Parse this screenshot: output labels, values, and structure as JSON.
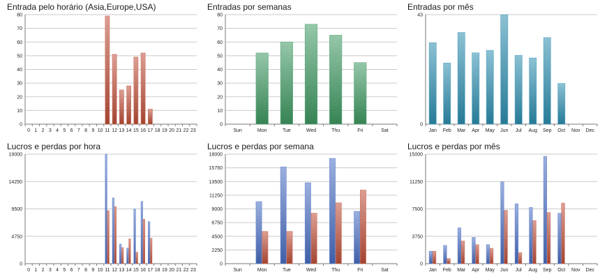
{
  "colors": {
    "red": "#c0503a",
    "green": "#3f9a63",
    "teal": "#2d8fb1",
    "blue": "#4a6fc4",
    "grid": "#c9c9c9",
    "axis": "#7a7a7a"
  },
  "chart_data": [
    {
      "type": "bar",
      "title": "Entrada pelo horário (Asia,Europe,USA)",
      "categories": [
        "0",
        "1",
        "2",
        "3",
        "4",
        "5",
        "6",
        "7",
        "8",
        "9",
        "10",
        "11",
        "12",
        "13",
        "14",
        "15",
        "16",
        "17",
        "18",
        "19",
        "20",
        "21",
        "22",
        "23"
      ],
      "series": [
        {
          "values": [
            0,
            0,
            0,
            0,
            0,
            0,
            0,
            0,
            0,
            0,
            0,
            79,
            51,
            25,
            28,
            49,
            52,
            11,
            0,
            0,
            0,
            0,
            0,
            0
          ]
        }
      ],
      "ylim": [
        0,
        80
      ],
      "yticks": [
        "0",
        "10",
        "20",
        "30",
        "40",
        "50",
        "60",
        "70",
        "80"
      ],
      "grid": true
    },
    {
      "type": "bar",
      "title": "Entradas por semanas",
      "categories": [
        "Sun",
        "Mon",
        "Tue",
        "Wed",
        "Thu",
        "Fri",
        "Sat"
      ],
      "series": [
        {
          "values": [
            0,
            52,
            60,
            73,
            65,
            45,
            0
          ]
        }
      ],
      "ylim": [
        0,
        80
      ],
      "yticks": [
        "0",
        "10",
        "20",
        "30",
        "40",
        "50",
        "60",
        "70",
        "80"
      ],
      "grid": true
    },
    {
      "type": "bar",
      "title": "Entradas por mês",
      "categories": [
        "Jan",
        "Feb",
        "Mar",
        "Apr",
        "May",
        "Jun",
        "Jul",
        "Aug",
        "Sep",
        "Oct",
        "Nov",
        "Dec"
      ],
      "series": [
        {
          "values": [
            32,
            24,
            36,
            28,
            29,
            43,
            27,
            26,
            34,
            16,
            0,
            0
          ]
        }
      ],
      "ylim": [
        0,
        43
      ],
      "yticks": [
        "0",
        "43"
      ],
      "grid": true
    },
    {
      "type": "bar",
      "title": "Lucros e perdas por hora",
      "categories": [
        "0",
        "1",
        "2",
        "3",
        "4",
        "5",
        "6",
        "7",
        "8",
        "9",
        "10",
        "11",
        "12",
        "13",
        "14",
        "15",
        "16",
        "17",
        "18",
        "19",
        "20",
        "21",
        "22",
        "23"
      ],
      "series": [
        {
          "values": [
            0,
            0,
            0,
            0,
            0,
            0,
            0,
            0,
            0,
            0,
            0,
            19000,
            11400,
            3400,
            2700,
            9500,
            10800,
            7300,
            0,
            0,
            0,
            0,
            0,
            0
          ]
        },
        {
          "values": [
            0,
            0,
            0,
            0,
            0,
            0,
            0,
            0,
            0,
            0,
            0,
            9200,
            9900,
            2800,
            4300,
            2000,
            7700,
            4400,
            0,
            0,
            0,
            0,
            0,
            0
          ]
        }
      ],
      "ylim": [
        0,
        19000
      ],
      "yticks": [
        "0",
        "4750",
        "9500",
        "14250",
        "19000"
      ],
      "grid": true
    },
    {
      "type": "bar",
      "title": "Lucros e perdas por semana",
      "categories": [
        "Sun",
        "Mon",
        "Tue",
        "Wed",
        "Thu",
        "Fri",
        "Sat"
      ],
      "series": [
        {
          "values": [
            0,
            10200,
            15900,
            13300,
            17300,
            8600,
            0
          ]
        },
        {
          "values": [
            0,
            5300,
            5300,
            8300,
            10000,
            12100,
            0
          ]
        }
      ],
      "ylim": [
        0,
        18000
      ],
      "yticks": [
        "0",
        "2250",
        "4500",
        "6750",
        "9000",
        "11250",
        "13500",
        "15750",
        "18000"
      ],
      "grid": true
    },
    {
      "type": "bar",
      "title": "Lucros e perdas por mês",
      "categories": [
        "Jan",
        "Feb",
        "Mar",
        "Apr",
        "May",
        "Jun",
        "Jul",
        "Aug",
        "Sep",
        "Oct",
        "Nov",
        "Dec"
      ],
      "series": [
        {
          "values": [
            1700,
            2500,
            4900,
            3600,
            2600,
            11200,
            8200,
            7700,
            14700,
            6900,
            0,
            0
          ]
        },
        {
          "values": [
            1700,
            700,
            3100,
            2600,
            2100,
            7300,
            1500,
            5900,
            7000,
            8300,
            0,
            0
          ]
        }
      ],
      "ylim": [
        0,
        15000
      ],
      "yticks": [
        "0",
        "3750",
        "7500",
        "11250",
        "15000"
      ],
      "grid": true
    }
  ]
}
